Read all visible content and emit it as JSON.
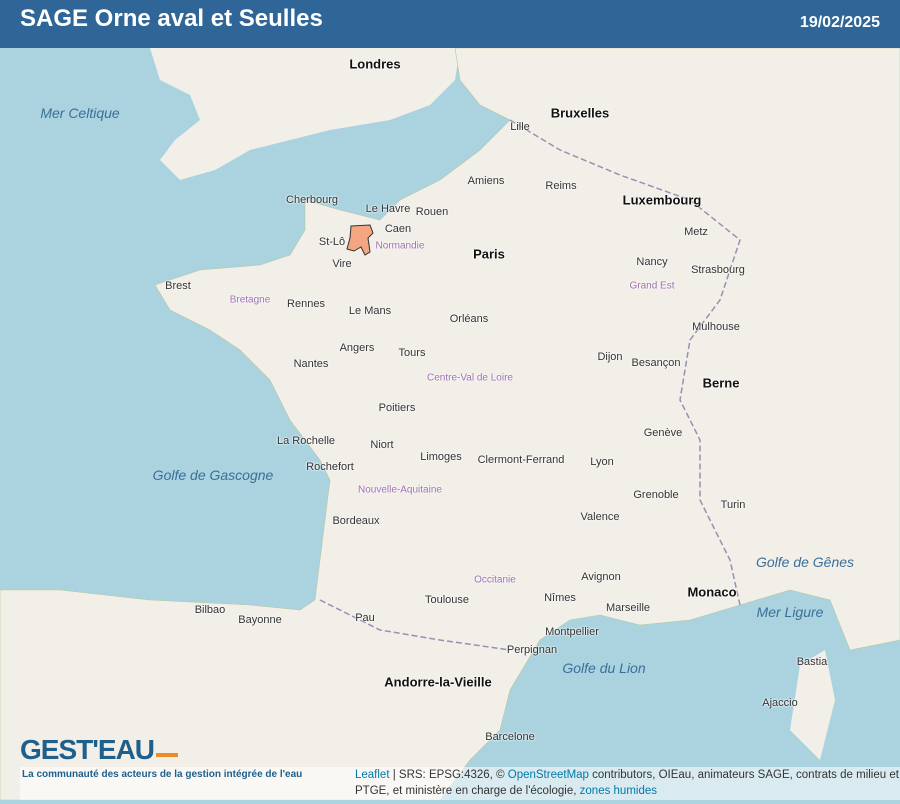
{
  "header": {
    "title": "SAGE Orne aval et Seulles",
    "date": "19/02/2025"
  },
  "map": {
    "colors": {
      "sea": "#aad3df",
      "land": "#f2efe9",
      "highlight": "#f4a582",
      "header": "#2f6697"
    },
    "highlighted_area": "SAGE Orne aval et Seulles",
    "cities": [
      "Londres",
      "Paris",
      "Bruxelles",
      "Luxembourg",
      "Le Havre",
      "Rouen",
      "St-Lô",
      "Vire",
      "Caen",
      "Rennes",
      "Nantes",
      "Brest",
      "Le Mans",
      "Tours",
      "Orléans",
      "Angers",
      "Poitiers",
      "Limoges",
      "Bordeaux",
      "Toulouse",
      "Montpellier",
      "Marseille",
      "Lyon",
      "Grenoble",
      "Dijon",
      "Strasbourg",
      "Nancy",
      "Reims",
      "Amiens",
      "Lille",
      "Clermont-Ferrand",
      "Perpignan",
      "Barcelone",
      "Monaco",
      "Berne",
      "Genève",
      "Turin",
      "Bilbao",
      "Pau",
      "Bayonne",
      "Andorre-la-Vieille",
      "Ajaccio",
      "Bastia",
      "Metz",
      "Mulhouse",
      "Besançon",
      "Valence",
      "Nîmes",
      "Avignon",
      "Rochefort",
      "La Rochelle",
      "Niort",
      "Cherbourg"
    ],
    "seas": [
      "Golfe de Gascogne",
      "Golfe du Lion",
      "Mer Celtique",
      "Golfe de Gênes",
      "Mer Ligure"
    ],
    "regions": [
      "Normandie",
      "Bretagne",
      "Centre-Val de Loire",
      "Occitanie",
      "Nouvelle-Aquitaine",
      "Grand Est"
    ]
  },
  "logo": {
    "name": "GEST'EAU",
    "tagline": "La communauté des acteurs de la gestion intégrée de l'eau"
  },
  "attribution": {
    "leaflet": "Leaflet",
    "srs": " | SRS: EPSG:4326, © ",
    "osm": "OpenStreetMap",
    "rest": " contributors, OIEau, animateurs SAGE, contrats de milieu et PTGE, et ministère en charge de l'écologie, ",
    "zones": "zones humides"
  }
}
